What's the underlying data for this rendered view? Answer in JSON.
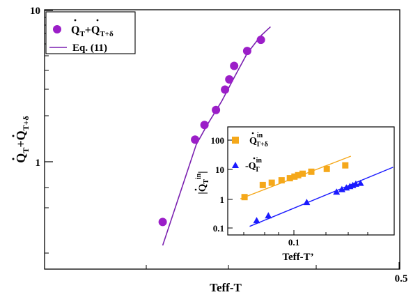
{
  "chart_data": [
    {
      "type": "scatter",
      "xlabel": "Teff-T",
      "ylabel": "Q̇_T+Q̇_T+δ",
      "y_scale": "log",
      "x_scale": "log",
      "ylim": [
        0.22,
        10
      ],
      "x_tick_labels": [
        "0.5"
      ],
      "y_tick_labels": [
        "1",
        "10"
      ],
      "legend_position": "top-left",
      "series": [
        {
          "name": "Q̇_T+Q̇_T+δ",
          "marker": "circle",
          "color": "#9b1ec8",
          "points": [
            [
              0.13,
              0.4
            ],
            [
              0.178,
              1.4
            ],
            [
              0.195,
              1.75
            ],
            [
              0.218,
              2.2
            ],
            [
              0.238,
              3.0
            ],
            [
              0.248,
              3.5
            ],
            [
              0.26,
              4.3
            ],
            [
              0.295,
              5.4
            ],
            [
              0.337,
              6.4
            ]
          ]
        },
        {
          "name": "Eq. (11)",
          "marker": "line",
          "color": "#7a1fb0",
          "points": [
            [
              0.13,
              0.28
            ],
            [
              0.18,
              1.3
            ],
            [
              0.2,
              1.75
            ],
            [
              0.23,
              2.5
            ],
            [
              0.26,
              3.6
            ],
            [
              0.295,
              5.2
            ],
            [
              0.337,
              6.8
            ],
            [
              0.37,
              7.8
            ]
          ]
        }
      ]
    },
    {
      "type": "scatter",
      "xlabel": "Teff-T’",
      "ylabel": "|Q̇_T^in|",
      "x_scale": "log",
      "y_scale": "log",
      "ylim": [
        0.1,
        300
      ],
      "x_tick_labels": [
        "0.1"
      ],
      "y_tick_labels": [
        "0.1",
        "1",
        "10",
        "100"
      ],
      "legend_position": "top-left",
      "series": [
        {
          "name": "Q̇_T+δ^in",
          "marker": "square",
          "color": "#f5a81a",
          "points": [
            [
              0.041,
              1.2
            ],
            [
              0.057,
              3.1
            ],
            [
              0.067,
              3.7
            ],
            [
              0.08,
              4.5
            ],
            [
              0.093,
              5.3
            ],
            [
              0.101,
              6.0
            ],
            [
              0.108,
              6.7
            ],
            [
              0.117,
              7.5
            ],
            [
              0.137,
              8.8
            ],
            [
              0.181,
              11.0
            ],
            [
              0.253,
              14.5
            ]
          ]
        },
        {
          "name": "-Q̇_T^in",
          "marker": "triangle",
          "color": "#1a1aff",
          "points": [
            [
              0.051,
              0.19
            ],
            [
              0.063,
              0.28
            ],
            [
              0.126,
              0.8
            ],
            [
              0.216,
              1.8
            ],
            [
              0.238,
              2.2
            ],
            [
              0.258,
              2.5
            ],
            [
              0.275,
              2.8
            ],
            [
              0.29,
              3.05
            ],
            [
              0.306,
              3.35
            ],
            [
              0.333,
              3.6
            ]
          ]
        },
        {
          "name": "orange fit",
          "marker": "line",
          "color": "#f5a81a",
          "points": [
            [
              0.038,
              1.05
            ],
            [
              0.28,
              30
            ]
          ]
        },
        {
          "name": "blue fit",
          "marker": "line",
          "color": "#1a1aff",
          "points": [
            [
              0.045,
              0.12
            ],
            [
              0.6,
              12.5
            ]
          ]
        }
      ]
    }
  ]
}
